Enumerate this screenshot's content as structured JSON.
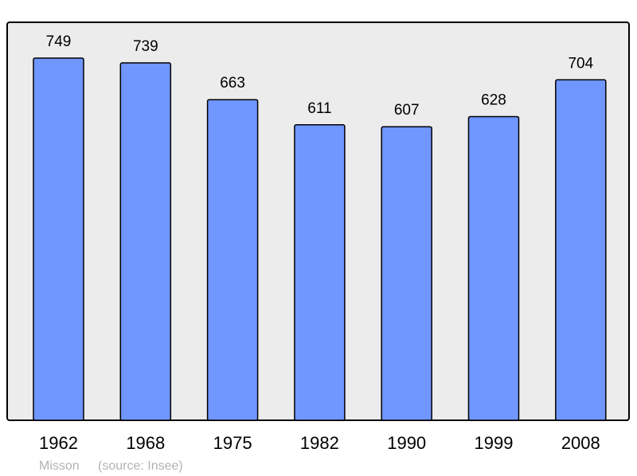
{
  "chart_data": {
    "type": "bar",
    "categories": [
      "1962",
      "1968",
      "1975",
      "1982",
      "1990",
      "1999",
      "2008"
    ],
    "values": [
      749,
      739,
      663,
      611,
      607,
      628,
      704
    ],
    "data_labels": [
      "749",
      "739",
      "663",
      "611",
      "607",
      "628",
      "704"
    ],
    "title": "",
    "xlabel": "",
    "ylabel": "",
    "ylim": [
      0,
      823
    ],
    "grid": false,
    "colors": {
      "bar": "#7096ff",
      "plot_background": "#ececec",
      "border": "#000000"
    }
  },
  "footer": {
    "place": "Misson",
    "source": "(source: Insee)"
  }
}
